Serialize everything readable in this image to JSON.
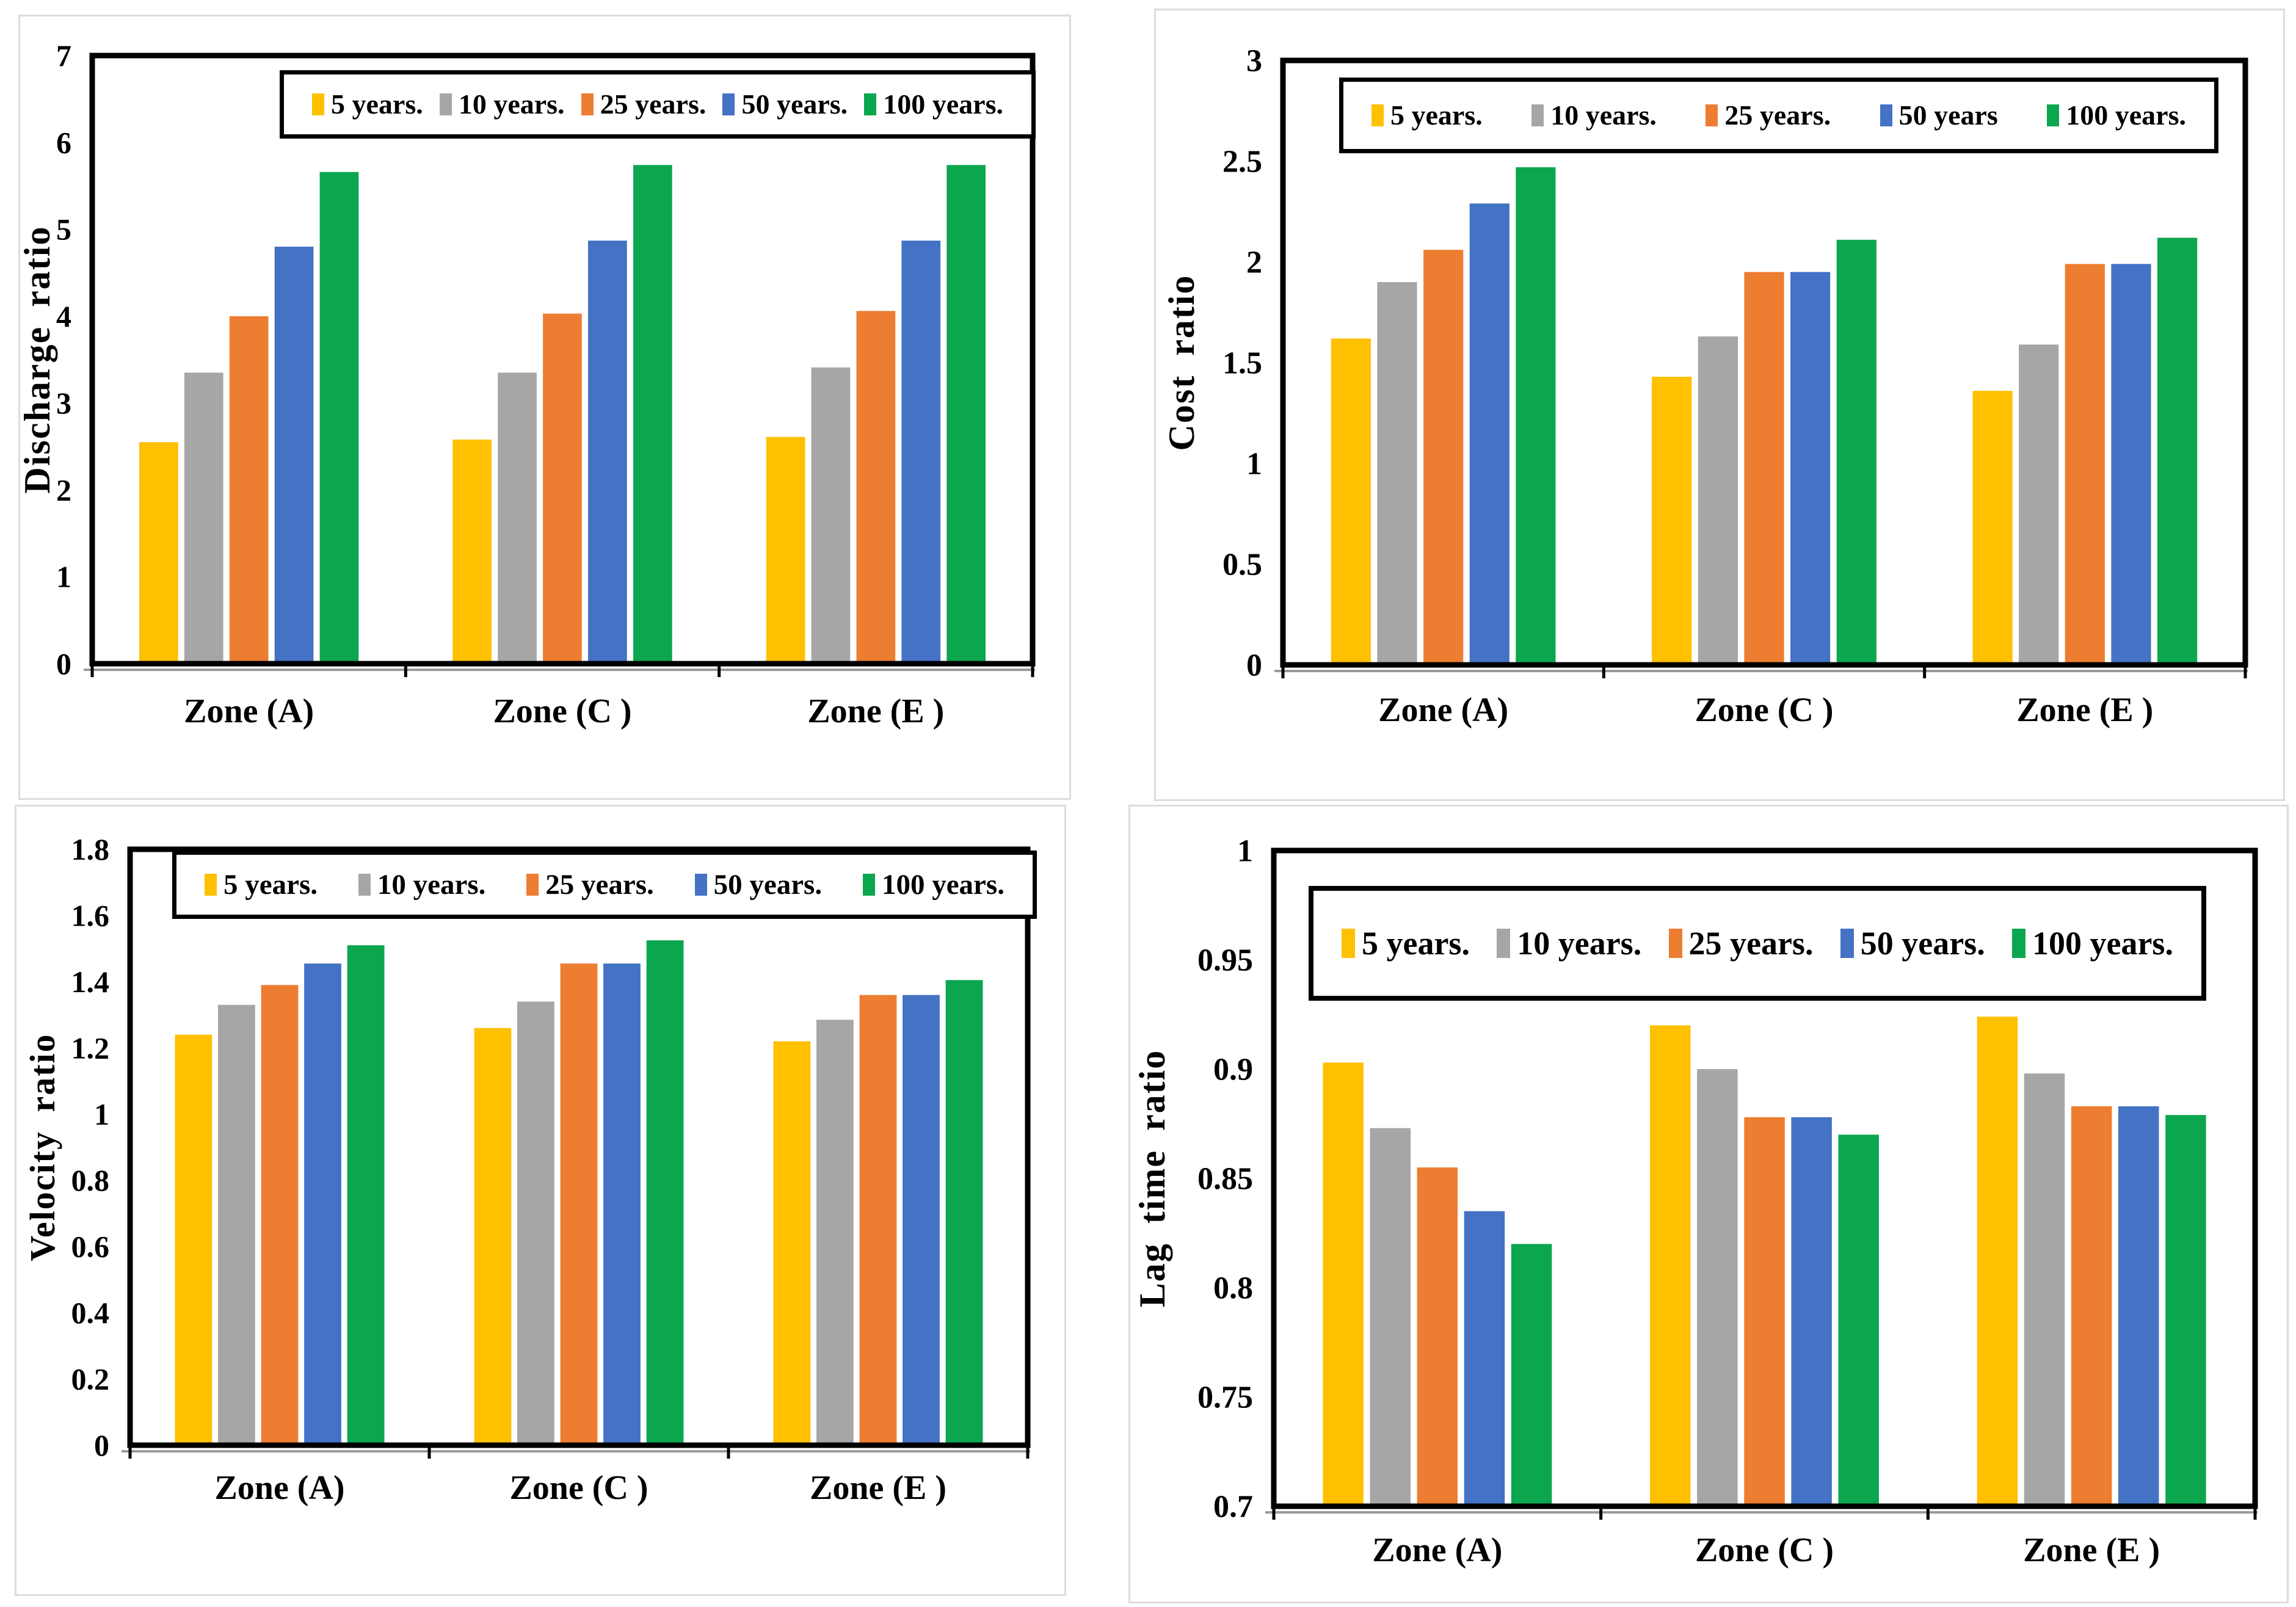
{
  "figure": {
    "background": "#ffffff",
    "panel_border_color": "#dcdcdc",
    "text_color": "#000000",
    "axis_color": "#000000"
  },
  "chart_data": [
    {
      "id": "discharge-ratio",
      "type": "bar",
      "title": "",
      "xlabel": "",
      "ylabel": "Discharge ratio",
      "categories": [
        "Zone (A)",
        "Zone (C )",
        "Zone (E )"
      ],
      "ylim": [
        0,
        7
      ],
      "yticks": [
        "0",
        "1",
        "2",
        "3",
        "4",
        "5",
        "6",
        "7"
      ],
      "grid": false,
      "legend_position": "top-inside",
      "series": [
        {
          "name": "5 years.",
          "color": "#FFC000",
          "values": [
            2.55,
            2.58,
            2.61
          ]
        },
        {
          "name": "10 years.",
          "color": "#A6A6A6",
          "values": [
            3.35,
            3.35,
            3.41
          ]
        },
        {
          "name": "25 years.",
          "color": "#ED7D31",
          "values": [
            4.0,
            4.03,
            4.06
          ]
        },
        {
          "name": "50 years.",
          "color": "#4472C4",
          "values": [
            4.8,
            4.87,
            4.87
          ]
        },
        {
          "name": "100 years.",
          "color": "#0CA64F",
          "values": [
            5.66,
            5.74,
            5.74
          ]
        }
      ]
    },
    {
      "id": "cost-ratio",
      "type": "bar",
      "title": "",
      "xlabel": "",
      "ylabel": "Cost ratio",
      "categories": [
        "Zone (A)",
        "Zone (C )",
        "Zone (E )"
      ],
      "ylim": [
        0,
        3
      ],
      "yticks": [
        "0",
        "0.5",
        "1",
        "1.5",
        "2",
        "2.5",
        "3"
      ],
      "grid": false,
      "legend_position": "top-inside",
      "series": [
        {
          "name": "5 years.",
          "color": "#FFC000",
          "values": [
            1.62,
            1.43,
            1.36
          ]
        },
        {
          "name": "10 years.",
          "color": "#A6A6A6",
          "values": [
            1.9,
            1.63,
            1.59
          ]
        },
        {
          "name": "25 years.",
          "color": "#ED7D31",
          "values": [
            2.06,
            1.95,
            1.99
          ]
        },
        {
          "name": "50 years",
          "color": "#4472C4",
          "values": [
            2.29,
            1.95,
            1.99
          ]
        },
        {
          "name": "100 years.",
          "color": "#0CA64F",
          "values": [
            2.47,
            2.11,
            2.12
          ]
        }
      ]
    },
    {
      "id": "velocity-ratio",
      "type": "bar",
      "title": "",
      "xlabel": "",
      "ylabel": "Velocity ratio",
      "categories": [
        "Zone (A)",
        "Zone (C )",
        "Zone (E )"
      ],
      "ylim": [
        0,
        1.8
      ],
      "yticks": [
        "0",
        "0.2",
        "0.4",
        "0.6",
        "0.8",
        "1",
        "1.2",
        "1.4",
        "1.6",
        "1.8"
      ],
      "grid": false,
      "legend_position": "top-inside",
      "series": [
        {
          "name": "5 years.",
          "color": "#FFC000",
          "values": [
            1.24,
            1.26,
            1.22
          ]
        },
        {
          "name": "10 years.",
          "color": "#A6A6A6",
          "values": [
            1.33,
            1.34,
            1.285
          ]
        },
        {
          "name": "25 years.",
          "color": "#ED7D31",
          "values": [
            1.39,
            1.455,
            1.36
          ]
        },
        {
          "name": "50 years.",
          "color": "#4472C4",
          "values": [
            1.455,
            1.455,
            1.36
          ]
        },
        {
          "name": "100 years.",
          "color": "#0CA64F",
          "values": [
            1.51,
            1.525,
            1.405
          ]
        }
      ]
    },
    {
      "id": "lag-time-ratio",
      "type": "bar",
      "title": "",
      "xlabel": "",
      "ylabel": "Lag time ratio",
      "categories": [
        "Zone (A)",
        "Zone (C )",
        "Zone (E )"
      ],
      "ylim": [
        0.7,
        1
      ],
      "yticks": [
        "0.7",
        "0.75",
        "0.8",
        "0.85",
        "0.9",
        "0.95",
        "1"
      ],
      "grid": false,
      "legend_position": "top-inside",
      "series": [
        {
          "name": "5 years.",
          "color": "#FFC000",
          "values": [
            0.903,
            0.92,
            0.924
          ]
        },
        {
          "name": "10 years.",
          "color": "#A6A6A6",
          "values": [
            0.873,
            0.9,
            0.898
          ]
        },
        {
          "name": "25 years.",
          "color": "#ED7D31",
          "values": [
            0.855,
            0.878,
            0.883
          ]
        },
        {
          "name": "50 years.",
          "color": "#4472C4",
          "values": [
            0.835,
            0.878,
            0.883
          ]
        },
        {
          "name": "100 years.",
          "color": "#0CA64F",
          "values": [
            0.82,
            0.87,
            0.879
          ]
        }
      ]
    }
  ]
}
